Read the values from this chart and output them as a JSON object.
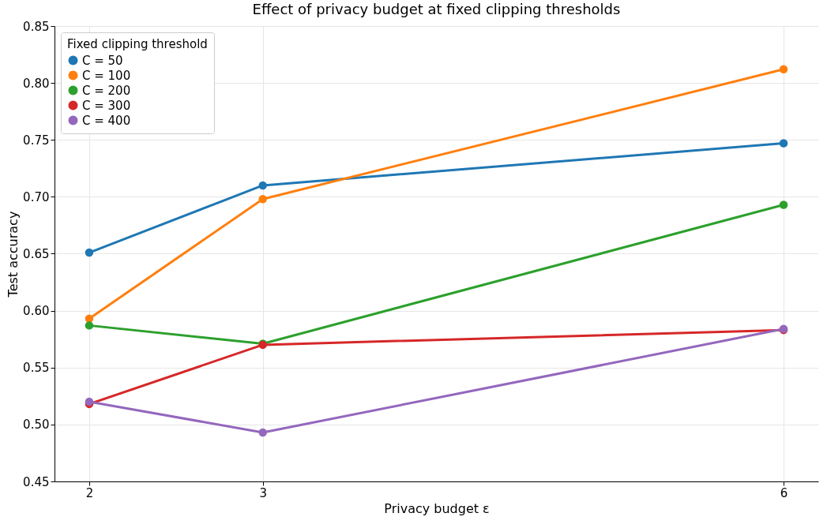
{
  "chart_data": {
    "type": "line",
    "title": "Effect of privacy budget at fixed clipping thresholds",
    "xlabel": "Privacy budget ε",
    "ylabel": "Test accuracy",
    "legend_title": "Fixed clipping threshold",
    "x": [
      2,
      3,
      6
    ],
    "series": [
      {
        "name": "C = 50",
        "color": "#1f77b4",
        "values": [
          0.651,
          0.71,
          0.747
        ]
      },
      {
        "name": "C = 100",
        "color": "#ff7f0e",
        "values": [
          0.593,
          0.698,
          0.812
        ]
      },
      {
        "name": "C = 200",
        "color": "#2ca02c",
        "values": [
          0.587,
          0.571,
          0.693
        ]
      },
      {
        "name": "C = 300",
        "color": "#d62728",
        "values": [
          0.518,
          0.57,
          0.583
        ]
      },
      {
        "name": "C = 400",
        "color": "#9467bd",
        "values": [
          0.52,
          0.493,
          0.584
        ]
      }
    ],
    "xlim": [
      1.8,
      6.2
    ],
    "xticks": [
      2,
      3,
      6
    ],
    "ylim": [
      0.45,
      0.85
    ],
    "yticks": [
      0.45,
      {
        "value": 0.5,
        "label": "0.50"
      },
      0.55,
      {
        "value": 0.6,
        "label": "0.60"
      },
      0.65,
      {
        "value": 0.7,
        "label": "0.70"
      },
      0.75,
      {
        "value": 0.8,
        "label": "0.80"
      },
      0.85
    ],
    "grid": true,
    "legend": "top left",
    "marker": "circle",
    "line_style": "solid"
  }
}
